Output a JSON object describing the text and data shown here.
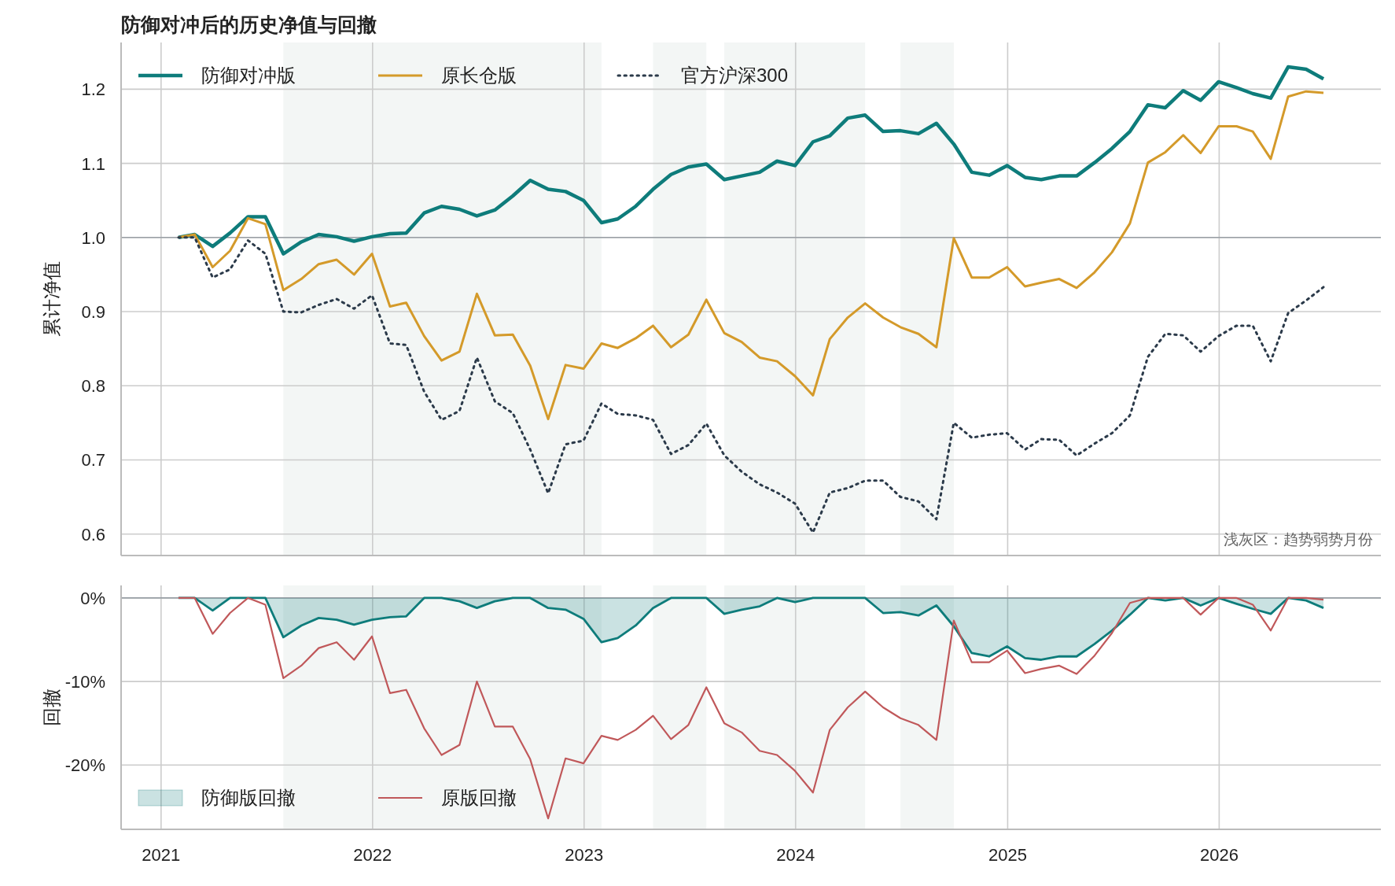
{
  "chart_data": [
    {
      "type": "line",
      "title": "防御对冲后的历史净值与回撤",
      "ylabel": "累计净值",
      "x": [
        "2021-01-31",
        "2021-02-28",
        "2021-03-31",
        "2021-04-30",
        "2021-05-31",
        "2021-06-30",
        "2021-07-31",
        "2021-08-31",
        "2021-09-30",
        "2021-10-31",
        "2021-11-30",
        "2021-12-31",
        "2022-01-31",
        "2022-02-28",
        "2022-03-31",
        "2022-04-30",
        "2022-05-31",
        "2022-06-30",
        "2022-07-31",
        "2022-08-31",
        "2022-09-30",
        "2022-10-31",
        "2022-11-30",
        "2022-12-31",
        "2023-01-31",
        "2023-02-28",
        "2023-03-31",
        "2023-04-30",
        "2023-05-31",
        "2023-06-30",
        "2023-07-31",
        "2023-08-31",
        "2023-09-30",
        "2023-10-31",
        "2023-11-30",
        "2023-12-31",
        "2024-01-31",
        "2024-02-29",
        "2024-03-31",
        "2024-04-30",
        "2024-05-31",
        "2024-06-30",
        "2024-07-31",
        "2024-08-31",
        "2024-09-30",
        "2024-10-31",
        "2024-11-30",
        "2024-12-31",
        "2025-01-31",
        "2025-02-28",
        "2025-03-31",
        "2025-04-30",
        "2025-05-31",
        "2025-06-30",
        "2025-07-31",
        "2025-08-31",
        "2025-09-30",
        "2025-10-31",
        "2025-11-30",
        "2025-12-31",
        "2026-01-31",
        "2026-02-28",
        "2026-03-31",
        "2026-04-30",
        "2026-05-31",
        "2026-06-30"
      ],
      "series": [
        {
          "name": "防御对冲版",
          "color": "#0e7c7b",
          "values": [
            1.0,
            1.004,
            0.988,
            1.006,
            1.028,
            1.028,
            0.978,
            0.994,
            1.004,
            1.001,
            0.995,
            1.001,
            1.005,
            1.006,
            1.033,
            1.042,
            1.038,
            1.029,
            1.037,
            1.056,
            1.077,
            1.065,
            1.062,
            1.05,
            1.02,
            1.025,
            1.042,
            1.065,
            1.085,
            1.095,
            1.099,
            1.078,
            1.083,
            1.088,
            1.103,
            1.097,
            1.129,
            1.137,
            1.161,
            1.165,
            1.143,
            1.144,
            1.14,
            1.154,
            1.126,
            1.088,
            1.084,
            1.097,
            1.081,
            1.078,
            1.083,
            1.083,
            1.101,
            1.12,
            1.143,
            1.179,
            1.175,
            1.198,
            1.185,
            1.21,
            1.202,
            1.194,
            1.188,
            1.23,
            1.227,
            1.214
          ]
        },
        {
          "name": "原长仓版",
          "color": "#d49a2a",
          "values": [
            1.0,
            1.004,
            0.96,
            0.982,
            1.026,
            1.018,
            0.929,
            0.944,
            0.964,
            0.97,
            0.95,
            0.978,
            0.907,
            0.912,
            0.867,
            0.834,
            0.846,
            0.924,
            0.868,
            0.869,
            0.827,
            0.755,
            0.828,
            0.823,
            0.857,
            0.851,
            0.864,
            0.881,
            0.852,
            0.869,
            0.916,
            0.871,
            0.859,
            0.838,
            0.833,
            0.813,
            0.787,
            0.863,
            0.892,
            0.911,
            0.892,
            0.879,
            0.87,
            0.852,
            0.999,
            0.946,
            0.946,
            0.96,
            0.934,
            0.939,
            0.944,
            0.932,
            0.953,
            0.98,
            1.019,
            1.101,
            1.115,
            1.138,
            1.114,
            1.15,
            1.15,
            1.143,
            1.106,
            1.19,
            1.197,
            1.195
          ]
        },
        {
          "name": "官方沪深300",
          "color": "#2b3a4a",
          "line_style": "dotted",
          "values": [
            1.0,
            1.0,
            0.946,
            0.957,
            0.996,
            0.978,
            0.9,
            0.899,
            0.909,
            0.917,
            0.904,
            0.922,
            0.857,
            0.855,
            0.792,
            0.754,
            0.766,
            0.838,
            0.779,
            0.763,
            0.714,
            0.655,
            0.721,
            0.726,
            0.776,
            0.762,
            0.76,
            0.754,
            0.708,
            0.72,
            0.749,
            0.706,
            0.684,
            0.667,
            0.656,
            0.641,
            0.602,
            0.656,
            0.662,
            0.672,
            0.672,
            0.65,
            0.644,
            0.62,
            0.75,
            0.73,
            0.734,
            0.736,
            0.714,
            0.728,
            0.727,
            0.706,
            0.722,
            0.736,
            0.76,
            0.839,
            0.87,
            0.868,
            0.846,
            0.867,
            0.881,
            0.881,
            0.833,
            0.898,
            0.915,
            0.933
          ]
        }
      ],
      "xlim": [
        "2020-10-24",
        "2026-10-07"
      ],
      "xticks": [
        {
          "value": "2021-01-01",
          "label": null
        },
        {
          "value": "2022-01-01",
          "label": null
        },
        {
          "value": "2023-01-01",
          "label": null
        },
        {
          "value": "2024-01-01",
          "label": null
        },
        {
          "value": "2025-01-01",
          "label": null
        },
        {
          "value": "2026-01-01",
          "label": null
        }
      ],
      "ylim": [
        0.571,
        1.263
      ],
      "yticks": [
        0.6,
        0.7,
        0.8,
        0.9,
        {
          "value": 1.0,
          "label": "1.0"
        },
        1.1,
        1.2
      ],
      "tick_labels": "y",
      "ref_lines": [
        {
          "axis": "y",
          "value": 1.0,
          "color": "#9aa0a6"
        }
      ],
      "bands": [
        {
          "axis": "x",
          "from": "2021-07-31",
          "to": "2023-01-31",
          "color": "#f3f6f5"
        },
        {
          "axis": "x",
          "from": "2023-04-30",
          "to": "2023-07-31",
          "color": "#f3f6f5"
        },
        {
          "axis": "x",
          "from": "2023-08-31",
          "to": "2024-04-30",
          "color": "#f3f6f5"
        },
        {
          "axis": "x",
          "from": "2024-06-30",
          "to": "2024-09-30",
          "color": "#f3f6f5"
        }
      ],
      "annotations": [
        "浅灰区：趋势弱势月份"
      ],
      "grid": true,
      "legend": "top left"
    },
    {
      "type": "line",
      "ylabel": "回撤",
      "x": [
        "2021-01-31",
        "2021-02-28",
        "2021-03-31",
        "2021-04-30",
        "2021-05-31",
        "2021-06-30",
        "2021-07-31",
        "2021-08-31",
        "2021-09-30",
        "2021-10-31",
        "2021-11-30",
        "2021-12-31",
        "2022-01-31",
        "2022-02-28",
        "2022-03-31",
        "2022-04-30",
        "2022-05-31",
        "2022-06-30",
        "2022-07-31",
        "2022-08-31",
        "2022-09-30",
        "2022-10-31",
        "2022-11-30",
        "2022-12-31",
        "2023-01-31",
        "2023-02-28",
        "2023-03-31",
        "2023-04-30",
        "2023-05-31",
        "2023-06-30",
        "2023-07-31",
        "2023-08-31",
        "2023-09-30",
        "2023-10-31",
        "2023-11-30",
        "2023-12-31",
        "2024-01-31",
        "2024-02-29",
        "2024-03-31",
        "2024-04-30",
        "2024-05-31",
        "2024-06-30",
        "2024-07-31",
        "2024-08-31",
        "2024-09-30",
        "2024-10-31",
        "2024-11-30",
        "2024-12-31",
        "2025-01-31",
        "2025-02-28",
        "2025-03-31",
        "2025-04-30",
        "2025-05-31",
        "2025-06-30",
        "2025-07-31",
        "2025-08-31",
        "2025-09-30",
        "2025-10-31",
        "2025-11-30",
        "2025-12-31",
        "2026-01-31",
        "2026-02-28",
        "2026-03-31",
        "2026-04-30",
        "2026-05-31",
        "2026-06-30"
      ],
      "series": [
        {
          "name": "防御版回撤",
          "type": "area",
          "color": "#0e7c7b",
          "values": [
            0,
            0,
            -1.5,
            0,
            0,
            0,
            -4.7,
            -3.3,
            -2.4,
            -2.6,
            -3.2,
            -2.6,
            -2.3,
            -2.2,
            0,
            0,
            -0.4,
            -1.2,
            -0.4,
            0,
            0,
            -1.2,
            -1.4,
            -2.5,
            -5.3,
            -4.8,
            -3.3,
            -1.2,
            0,
            0,
            0,
            -1.9,
            -1.4,
            -1.0,
            0,
            -0.5,
            0,
            0,
            0,
            0,
            -1.8,
            -1.7,
            -2.1,
            -0.9,
            -3.4,
            -6.6,
            -7.0,
            -5.8,
            -7.2,
            -7.4,
            -7.0,
            -7.0,
            -5.5,
            -3.9,
            -2.0,
            0,
            -0.3,
            0,
            -0.9,
            0,
            -0.7,
            -1.3,
            -1.9,
            0,
            -0.3,
            -1.2
          ]
        },
        {
          "name": "原版回撤",
          "color": "#c0585a",
          "values": [
            0,
            0,
            -4.3,
            -1.8,
            0,
            -0.8,
            -9.6,
            -8.1,
            -6.0,
            -5.3,
            -7.4,
            -4.6,
            -11.4,
            -11.0,
            -15.6,
            -18.8,
            -17.6,
            -10.0,
            -15.4,
            -15.4,
            -19.3,
            -26.4,
            -19.2,
            -19.8,
            -16.5,
            -17.0,
            -15.8,
            -14.1,
            -16.9,
            -15.2,
            -10.7,
            -15.0,
            -16.1,
            -18.3,
            -18.8,
            -20.7,
            -23.3,
            -15.8,
            -13.1,
            -11.2,
            -13.1,
            -14.4,
            -15.2,
            -17.0,
            -2.7,
            -7.7,
            -7.7,
            -6.3,
            -9.0,
            -8.5,
            -8.1,
            -9.1,
            -6.9,
            -4.2,
            -0.6,
            0,
            0,
            0,
            -2.0,
            0,
            0,
            -0.8,
            -3.9,
            0,
            0,
            -0.2
          ]
        }
      ],
      "xlim": [
        "2020-10-24",
        "2026-10-07"
      ],
      "xticks": [
        {
          "value": "2021-01-01",
          "label": "2021"
        },
        {
          "value": "2022-01-01",
          "label": "2022"
        },
        {
          "value": "2023-01-01",
          "label": "2023"
        },
        {
          "value": "2024-01-01",
          "label": "2024"
        },
        {
          "value": "2025-01-01",
          "label": "2025"
        },
        {
          "value": "2026-01-01",
          "label": "2026"
        }
      ],
      "ylim": [
        -27.7,
        1.5
      ],
      "yticks": [
        {
          "value": 0,
          "label": "0%"
        },
        {
          "value": -10,
          "label": "-10%"
        },
        {
          "value": -20,
          "label": "-20%"
        }
      ],
      "ref_lines": [
        {
          "axis": "y",
          "value": 0,
          "color": "#9aa0a6"
        }
      ],
      "bands": [
        {
          "axis": "x",
          "from": "2021-07-31",
          "to": "2023-01-31",
          "color": "#f3f6f5"
        },
        {
          "axis": "x",
          "from": "2023-04-30",
          "to": "2023-07-31",
          "color": "#f3f6f5"
        },
        {
          "axis": "x",
          "from": "2023-08-31",
          "to": "2024-04-30",
          "color": "#f3f6f5"
        },
        {
          "axis": "x",
          "from": "2024-06-30",
          "to": "2024-09-30",
          "color": "#f3f6f5"
        }
      ],
      "grid": true,
      "legend": "bottom left"
    }
  ]
}
